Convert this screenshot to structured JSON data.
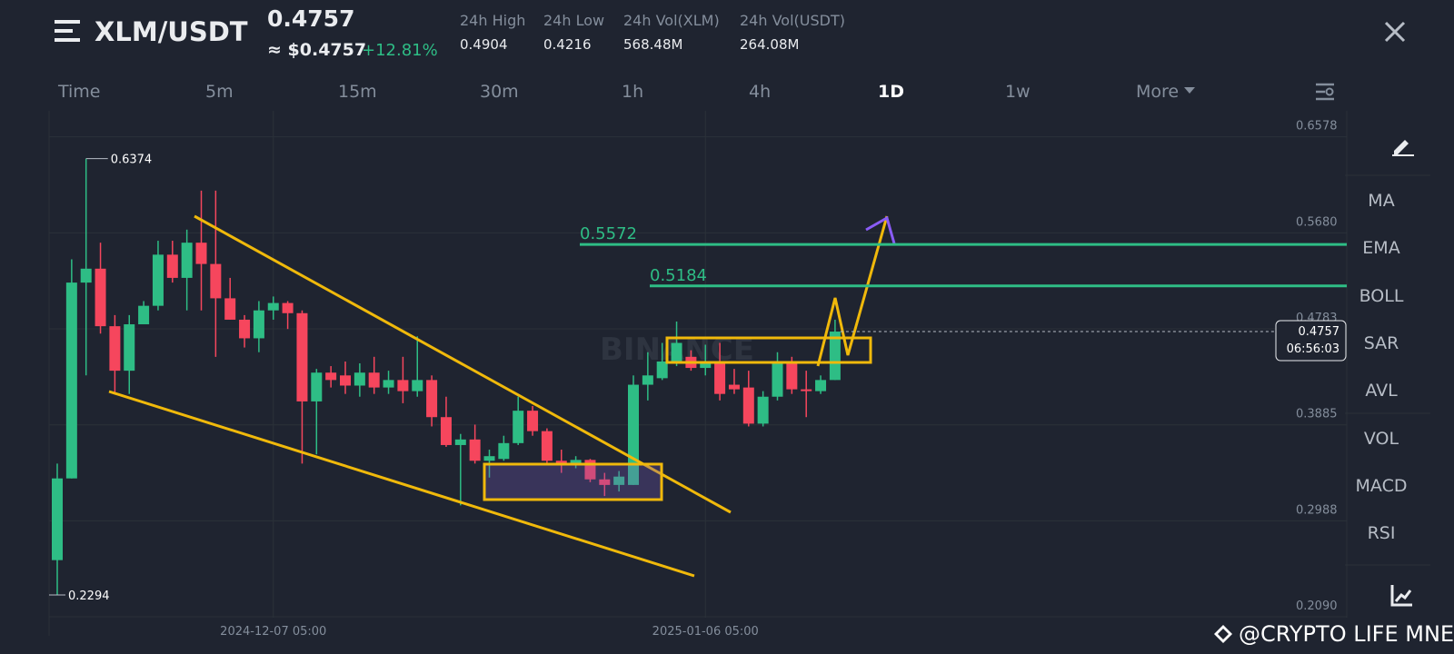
{
  "header": {
    "pair": "XLM/USDT",
    "last_price": "0.4757",
    "usd_price": "≈ $0.4757",
    "change": "+12.81%",
    "stats": [
      {
        "label": "24h High",
        "value": "0.4904"
      },
      {
        "label": "24h Low",
        "value": "0.4216"
      },
      {
        "label": "24h Vol(XLM)",
        "value": "568.48M"
      },
      {
        "label": "24h Vol(USDT)",
        "value": "264.08M"
      }
    ]
  },
  "tabs": [
    "Time",
    "5m",
    "15m",
    "30m",
    "1h",
    "4h",
    "1D",
    "1w",
    "More"
  ],
  "active_tab": 6,
  "indicators": [
    "MA",
    "EMA",
    "BOLL",
    "SAR",
    "AVL",
    "VOL",
    "MACD",
    "RSI"
  ],
  "watermark": "@CRYPTO LIFE MNE",
  "brand_watermark": "BINANCE",
  "chart_data": {
    "type": "candlestick",
    "categories": [
      null,
      null,
      null,
      null,
      null,
      null,
      null,
      null,
      null,
      null,
      null,
      null,
      null,
      null,
      null,
      "2024-12-07 05:00",
      null,
      null,
      null,
      null,
      null,
      null,
      null,
      null,
      null,
      null,
      null,
      null,
      null,
      null,
      null,
      null,
      null,
      null,
      null,
      null,
      null,
      null,
      null,
      null,
      null,
      null,
      null,
      null,
      null,
      "2025-01-06 05:00",
      null,
      null,
      null,
      null,
      null,
      null,
      null,
      null,
      null
    ],
    "open": [
      0.262,
      0.3384,
      0.5215,
      0.5345,
      0.4807,
      0.4391,
      0.4825,
      0.4998,
      0.5476,
      0.5259,
      0.5588,
      0.5389,
      0.5068,
      0.4868,
      0.4694,
      0.4955,
      0.5024,
      0.4929,
      0.4104,
      0.4373,
      0.4347,
      0.4252,
      0.4373,
      0.4234,
      0.4304,
      0.42,
      0.4304,
      0.3957,
      0.3696,
      0.3748,
      0.3549,
      0.3566,
      0.3714,
      0.4017,
      0.3826,
      0.3549,
      0.3523,
      0.3557,
      0.3375,
      0.3323,
      0.3323,
      0.426,
      0.4321,
      0.4477,
      0.4521,
      0.4417,
      0.4477,
      0.426,
      0.4234,
      0.3896,
      0.4148,
      0.446,
      0.4217,
      0.42,
      0.4304
    ],
    "high": [
      0.3523,
      0.5432,
      0.6374,
      0.5588,
      0.4911,
      0.4911,
      0.5042,
      0.5606,
      0.5606,
      0.571,
      0.6075,
      0.6075,
      0.5259,
      0.4911,
      0.5042,
      0.5085,
      0.5042,
      0.4955,
      0.4408,
      0.4434,
      0.4477,
      0.446,
      0.4521,
      0.4391,
      0.4521,
      0.4712,
      0.4347,
      0.4148,
      0.38,
      0.3887,
      0.3653,
      0.3783,
      0.4148,
      0.4061,
      0.3852,
      0.3653,
      0.3592,
      0.3566,
      0.3436,
      0.3453,
      0.4347,
      0.4564,
      0.4651,
      0.4851,
      0.4582,
      0.4634,
      0.4651,
      0.4408,
      0.4391,
      0.42,
      0.4564,
      0.4521,
      0.4391,
      0.4347,
      0.4868
    ],
    "low": [
      0.2294,
      0.3384,
      0.4347,
      0.4738,
      0.4174,
      0.4174,
      0.4825,
      0.4955,
      0.5215,
      0.4955,
      0.4955,
      0.4521,
      0.4868,
      0.4608,
      0.4564,
      0.4868,
      0.4781,
      0.3523,
      0.3609,
      0.4234,
      0.4174,
      0.4148,
      0.4174,
      0.4174,
      0.4087,
      0.4148,
      0.387,
      0.3679,
      0.3132,
      0.3523,
      0.3392,
      0.3549,
      0.3696,
      0.3783,
      0.3505,
      0.3436,
      0.3479,
      0.3349,
      0.3219,
      0.3262,
      0.3323,
      0.4113,
      0.4304,
      0.4434,
      0.4391,
      0.4347,
      0.4113,
      0.4174,
      0.387,
      0.387,
      0.4113,
      0.4174,
      0.3957,
      0.4174,
      0.4304
    ],
    "close": [
      0.3384,
      0.5215,
      0.5345,
      0.4807,
      0.4391,
      0.4825,
      0.4998,
      0.5476,
      0.5259,
      0.5588,
      0.5389,
      0.5068,
      0.4868,
      0.4694,
      0.4955,
      0.5024,
      0.4929,
      0.4104,
      0.4373,
      0.4304,
      0.4252,
      0.4373,
      0.4234,
      0.4304,
      0.42,
      0.4304,
      0.3957,
      0.3696,
      0.3748,
      0.3549,
      0.3592,
      0.3714,
      0.4017,
      0.3826,
      0.3549,
      0.3523,
      0.3557,
      0.3375,
      0.3323,
      0.3401,
      0.426,
      0.4347,
      0.4477,
      0.4651,
      0.4417,
      0.4477,
      0.4174,
      0.4217,
      0.3896,
      0.4148,
      0.446,
      0.4217,
      0.42,
      0.4304,
      0.4757
    ],
    "up_color": "#2ebd85",
    "down_color": "#f6465d",
    "ylim": [
      0.2082,
      0.6821
    ],
    "yticks": [
      0.6578,
      {
        "value": 0.568,
        "label": "0.5680"
      },
      0.4783,
      0.3885,
      0.2988,
      {
        "value": 0.209,
        "label": "0.2090"
      }
    ],
    "levels": [
      {
        "value": 0.5572,
        "color": "#2ebd85"
      },
      {
        "value": 0.5184,
        "color": "#2ebd85"
      }
    ],
    "countdown": "06:56:03"
  }
}
